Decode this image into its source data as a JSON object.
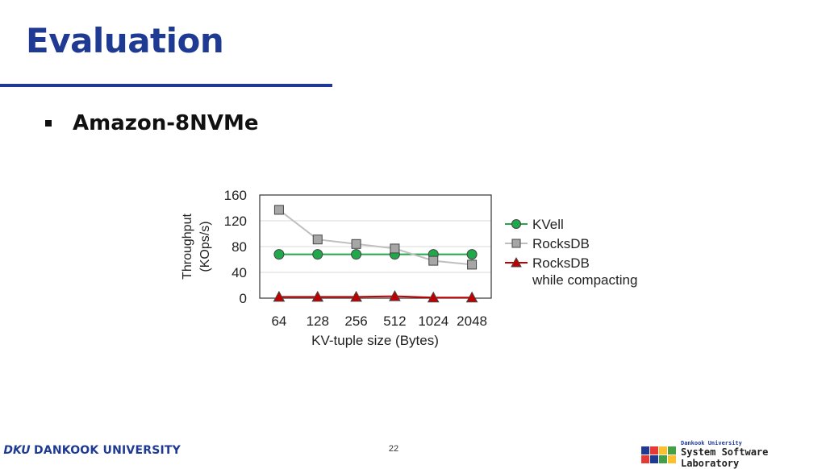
{
  "slide": {
    "title": "Evaluation",
    "bullet": "Amazon-8NVMe",
    "page_number": "22"
  },
  "footer": {
    "university_logo": "DKU",
    "university_name": "DANKOOK UNIVERSITY",
    "lab_small": "Dankook University",
    "lab_name": "System Software Laboratory"
  },
  "colors": {
    "title": "#1f3a93",
    "kvell": "#21a84a",
    "rocksdb": "#a6a6a6",
    "rocksdb_compacting": "#c00000"
  },
  "chart_data": {
    "type": "line",
    "title": "",
    "xlabel": "KV-tuple size (Bytes)",
    "ylabel": "Throughput\n(KOps/s)",
    "categories": [
      "64",
      "128",
      "256",
      "512",
      "1024",
      "2048"
    ],
    "ylim": [
      0,
      160
    ],
    "yticks": [
      0,
      40,
      80,
      120,
      160
    ],
    "grid": true,
    "legend_position": "right",
    "series": [
      {
        "name": "KVell",
        "values": [
          68,
          68,
          68,
          68,
          68,
          68
        ],
        "marker": "circle",
        "color": "#21a84a",
        "line_color": "#21a84a"
      },
      {
        "name": "RocksDB",
        "values": [
          137,
          91,
          84,
          77,
          58,
          52
        ],
        "marker": "square",
        "color": "#a6a6a6",
        "line_color": "#bfbfbf"
      },
      {
        "name": "RocksDB\nwhile compacting",
        "values": [
          2,
          2,
          2,
          3,
          1,
          1
        ],
        "marker": "triangle",
        "color": "#c00000",
        "line_color": "#c00000"
      }
    ]
  }
}
